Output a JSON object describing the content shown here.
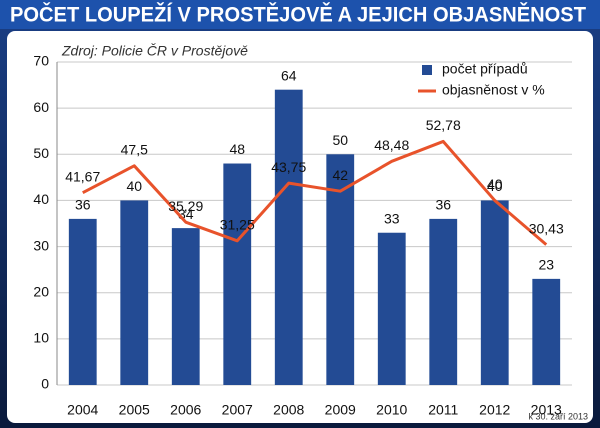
{
  "chart_data": {
    "type": "bar",
    "title": "POČET LOUPEŽÍ V PROSTĚJOVĚ A JEJICH OBJASNĚNOST",
    "subtitle": "Zdroj: Policie ČR v Prostějově",
    "footnote": "k 30. září 2013",
    "categories": [
      "2004",
      "2005",
      "2006",
      "2007",
      "2008",
      "2009",
      "2010",
      "2011",
      "2012",
      "2013"
    ],
    "series": [
      {
        "name": "počet případů",
        "type": "bar",
        "color": "#234b94",
        "values": [
          36,
          40,
          34,
          48,
          64,
          50,
          33,
          36,
          40,
          23
        ]
      },
      {
        "name": "objasněnost v %",
        "type": "line",
        "color": "#e8532b",
        "values": [
          41.67,
          47.5,
          35.29,
          31.25,
          43.75,
          42,
          48.48,
          52.78,
          40,
          30.43
        ],
        "value_labels": [
          "41,67",
          "47,5",
          "35,29",
          "31,25",
          "43,75",
          "42",
          "48,48",
          "52,78",
          "40",
          "30,43"
        ]
      }
    ],
    "ylim": [
      0,
      70
    ],
    "yticks": [
      0,
      10,
      20,
      30,
      40,
      50,
      60,
      70
    ],
    "grid": true,
    "legend": "top-right"
  }
}
